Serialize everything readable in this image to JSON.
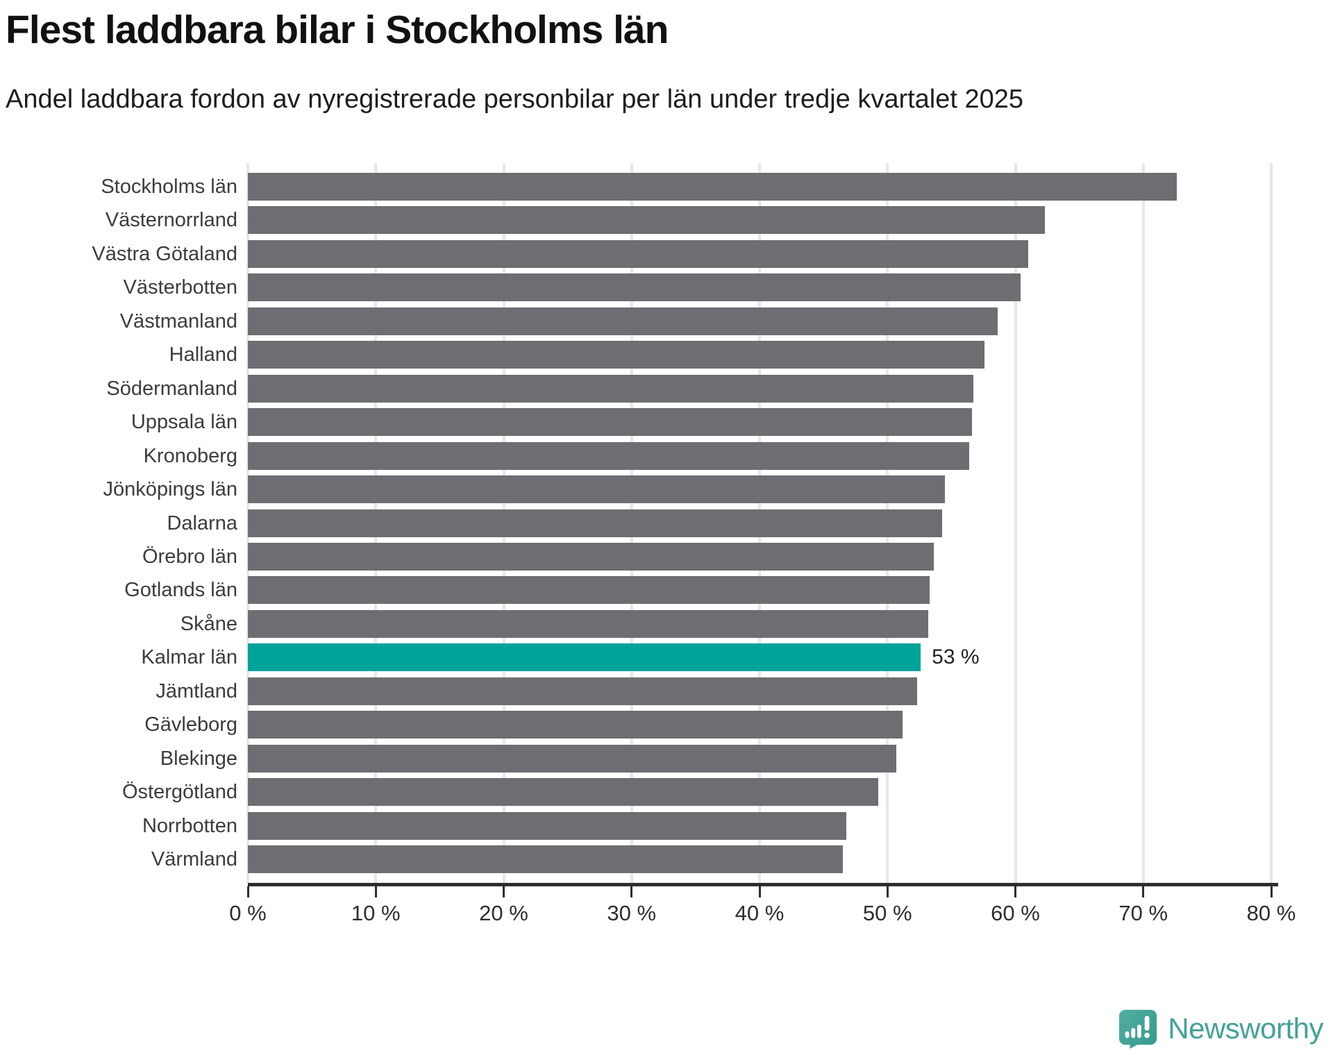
{
  "header": {
    "title": "Flest laddbara bilar i Stockholms län",
    "subtitle": "Andel laddbara fordon av nyregistrerade personbilar per län under tredje kvartalet 2025"
  },
  "chart_data": {
    "type": "bar",
    "orientation": "horizontal",
    "title": "Flest laddbara bilar i Stockholms län",
    "subtitle": "Andel laddbara fordon av nyregistrerade personbilar per län under tredje kvartalet 2025",
    "categories": [
      "Stockholms län",
      "Västernorrland",
      "Västra Götaland",
      "Västerbotten",
      "Västmanland",
      "Halland",
      "Södermanland",
      "Uppsala län",
      "Kronoberg",
      "Jönköpings län",
      "Dalarna",
      "Örebro län",
      "Gotlands län",
      "Skåne",
      "Kalmar län",
      "Jämtland",
      "Gävleborg",
      "Blekinge",
      "Östergötland",
      "Norrbotten",
      "Värmland"
    ],
    "values": [
      72.6,
      62.3,
      61.0,
      60.4,
      58.6,
      57.6,
      56.7,
      56.6,
      56.4,
      54.5,
      54.3,
      53.6,
      53.3,
      53.2,
      52.6,
      52.3,
      51.2,
      50.7,
      49.3,
      46.8,
      46.5
    ],
    "unit": "%",
    "xlim": [
      0,
      80
    ],
    "x_ticks": [
      "0 %",
      "10 %",
      "20 %",
      "30 %",
      "40 %",
      "50 %",
      "60 %",
      "70 %",
      "80 %"
    ],
    "grid": "vertical-gridlines-on",
    "legend": "none",
    "highlight": {
      "category": "Kalmar län",
      "index": 14,
      "annotation": "53 %"
    },
    "colors": {
      "bar": "#6d6d72",
      "highlight_bar": "#00a39a",
      "gridline": "#e7e7e7",
      "axis": "#2e2e2e",
      "label": "#3c3c3c"
    }
  },
  "footer": {
    "brand": "Newsworthy",
    "brand_color": "#43a296"
  }
}
